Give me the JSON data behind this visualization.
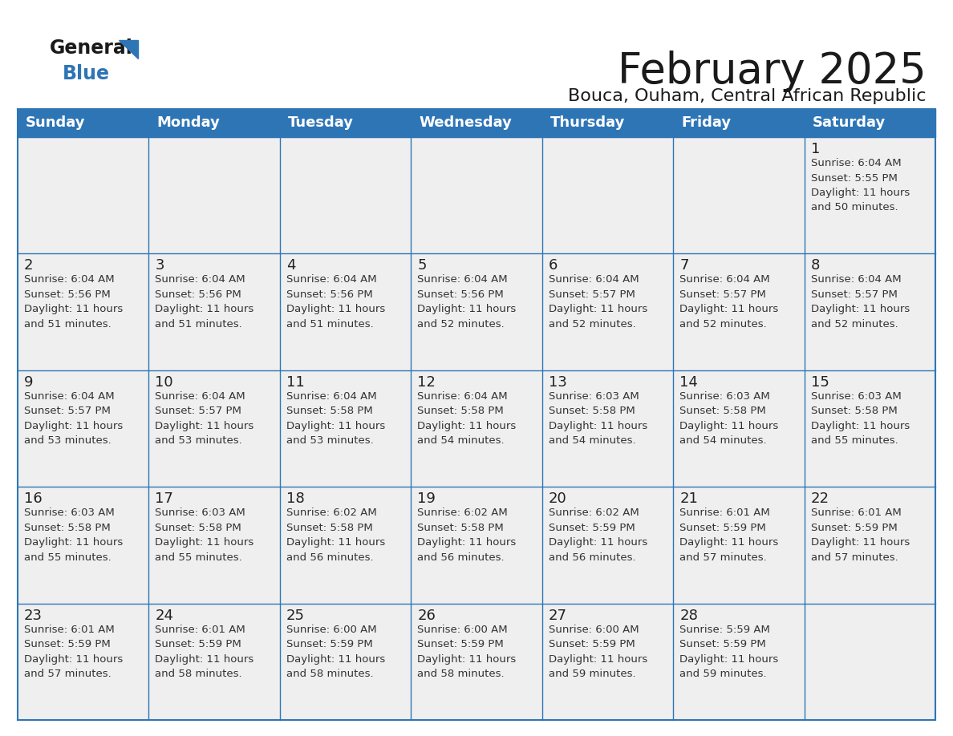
{
  "title": "February 2025",
  "subtitle": "Bouca, Ouham, Central African Republic",
  "header_bg": "#2E75B6",
  "header_text_color": "#FFFFFF",
  "days_of_week": [
    "Sunday",
    "Monday",
    "Tuesday",
    "Wednesday",
    "Thursday",
    "Friday",
    "Saturday"
  ],
  "cell_border_color": "#2E75B6",
  "cell_bg_color": "#EFEFEF",
  "cell_bg_white": "#FFFFFF",
  "day_number_color": "#222222",
  "info_text_color": "#333333",
  "logo_general_color": "#1a1a1a",
  "logo_blue_color": "#2E75B6",
  "calendar": [
    [
      null,
      null,
      null,
      null,
      null,
      null,
      {
        "day": 1,
        "sunrise": "6:04 AM",
        "sunset": "5:55 PM",
        "daylight": "11 hours and 50 minutes."
      }
    ],
    [
      {
        "day": 2,
        "sunrise": "6:04 AM",
        "sunset": "5:56 PM",
        "daylight": "11 hours and 51 minutes."
      },
      {
        "day": 3,
        "sunrise": "6:04 AM",
        "sunset": "5:56 PM",
        "daylight": "11 hours and 51 minutes."
      },
      {
        "day": 4,
        "sunrise": "6:04 AM",
        "sunset": "5:56 PM",
        "daylight": "11 hours and 51 minutes."
      },
      {
        "day": 5,
        "sunrise": "6:04 AM",
        "sunset": "5:56 PM",
        "daylight": "11 hours and 52 minutes."
      },
      {
        "day": 6,
        "sunrise": "6:04 AM",
        "sunset": "5:57 PM",
        "daylight": "11 hours and 52 minutes."
      },
      {
        "day": 7,
        "sunrise": "6:04 AM",
        "sunset": "5:57 PM",
        "daylight": "11 hours and 52 minutes."
      },
      {
        "day": 8,
        "sunrise": "6:04 AM",
        "sunset": "5:57 PM",
        "daylight": "11 hours and 52 minutes."
      }
    ],
    [
      {
        "day": 9,
        "sunrise": "6:04 AM",
        "sunset": "5:57 PM",
        "daylight": "11 hours and 53 minutes."
      },
      {
        "day": 10,
        "sunrise": "6:04 AM",
        "sunset": "5:57 PM",
        "daylight": "11 hours and 53 minutes."
      },
      {
        "day": 11,
        "sunrise": "6:04 AM",
        "sunset": "5:58 PM",
        "daylight": "11 hours and 53 minutes."
      },
      {
        "day": 12,
        "sunrise": "6:04 AM",
        "sunset": "5:58 PM",
        "daylight": "11 hours and 54 minutes."
      },
      {
        "day": 13,
        "sunrise": "6:03 AM",
        "sunset": "5:58 PM",
        "daylight": "11 hours and 54 minutes."
      },
      {
        "day": 14,
        "sunrise": "6:03 AM",
        "sunset": "5:58 PM",
        "daylight": "11 hours and 54 minutes."
      },
      {
        "day": 15,
        "sunrise": "6:03 AM",
        "sunset": "5:58 PM",
        "daylight": "11 hours and 55 minutes."
      }
    ],
    [
      {
        "day": 16,
        "sunrise": "6:03 AM",
        "sunset": "5:58 PM",
        "daylight": "11 hours and 55 minutes."
      },
      {
        "day": 17,
        "sunrise": "6:03 AM",
        "sunset": "5:58 PM",
        "daylight": "11 hours and 55 minutes."
      },
      {
        "day": 18,
        "sunrise": "6:02 AM",
        "sunset": "5:58 PM",
        "daylight": "11 hours and 56 minutes."
      },
      {
        "day": 19,
        "sunrise": "6:02 AM",
        "sunset": "5:58 PM",
        "daylight": "11 hours and 56 minutes."
      },
      {
        "day": 20,
        "sunrise": "6:02 AM",
        "sunset": "5:59 PM",
        "daylight": "11 hours and 56 minutes."
      },
      {
        "day": 21,
        "sunrise": "6:01 AM",
        "sunset": "5:59 PM",
        "daylight": "11 hours and 57 minutes."
      },
      {
        "day": 22,
        "sunrise": "6:01 AM",
        "sunset": "5:59 PM",
        "daylight": "11 hours and 57 minutes."
      }
    ],
    [
      {
        "day": 23,
        "sunrise": "6:01 AM",
        "sunset": "5:59 PM",
        "daylight": "11 hours and 57 minutes."
      },
      {
        "day": 24,
        "sunrise": "6:01 AM",
        "sunset": "5:59 PM",
        "daylight": "11 hours and 58 minutes."
      },
      {
        "day": 25,
        "sunrise": "6:00 AM",
        "sunset": "5:59 PM",
        "daylight": "11 hours and 58 minutes."
      },
      {
        "day": 26,
        "sunrise": "6:00 AM",
        "sunset": "5:59 PM",
        "daylight": "11 hours and 58 minutes."
      },
      {
        "day": 27,
        "sunrise": "6:00 AM",
        "sunset": "5:59 PM",
        "daylight": "11 hours and 59 minutes."
      },
      {
        "day": 28,
        "sunrise": "5:59 AM",
        "sunset": "5:59 PM",
        "daylight": "11 hours and 59 minutes."
      },
      null
    ]
  ]
}
